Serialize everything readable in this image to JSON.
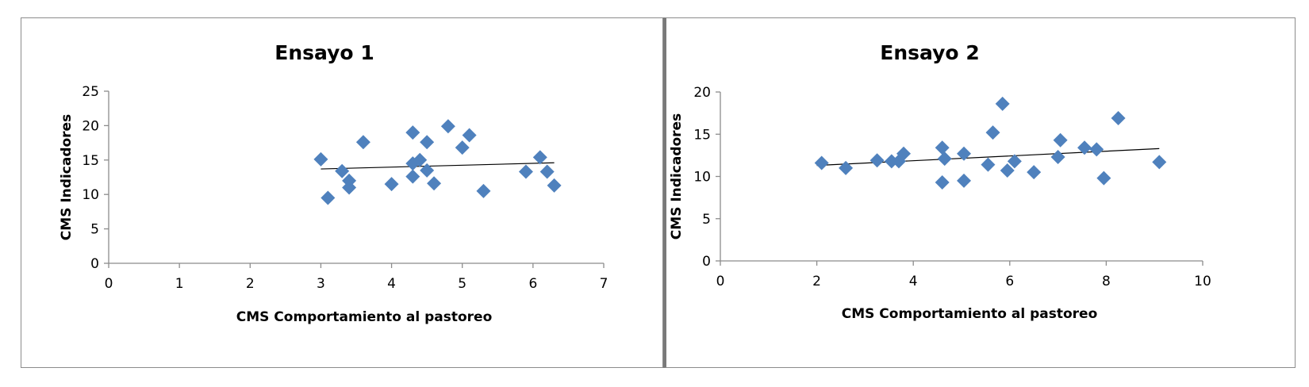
{
  "chart_data": [
    {
      "type": "scatter",
      "title": "Ensayo 1",
      "xlabel": "CMS Comportamiento al pastoreo",
      "ylabel": "CMS Indicadores",
      "xlim": [
        0,
        7
      ],
      "ylim": [
        0,
        25
      ],
      "xticks": [
        0,
        1,
        2,
        3,
        4,
        5,
        6,
        7
      ],
      "yticks": [
        0,
        5,
        10,
        15,
        20,
        25
      ],
      "grid": false,
      "marker": "diamond",
      "color": "#4f81bd",
      "points": [
        [
          3.0,
          15.1
        ],
        [
          3.1,
          9.5
        ],
        [
          3.3,
          13.4
        ],
        [
          3.4,
          12.0
        ],
        [
          3.4,
          11.0
        ],
        [
          3.6,
          17.6
        ],
        [
          4.0,
          11.5
        ],
        [
          4.3,
          19.0
        ],
        [
          4.3,
          14.5
        ],
        [
          4.3,
          12.6
        ],
        [
          4.4,
          15.0
        ],
        [
          4.5,
          17.6
        ],
        [
          4.5,
          13.5
        ],
        [
          4.6,
          11.6
        ],
        [
          4.8,
          19.9
        ],
        [
          5.0,
          16.8
        ],
        [
          5.1,
          18.6
        ],
        [
          5.3,
          10.5
        ],
        [
          5.9,
          13.3
        ],
        [
          6.1,
          15.4
        ],
        [
          6.2,
          13.3
        ],
        [
          6.3,
          11.3
        ]
      ],
      "trendline": [
        [
          3.0,
          13.7
        ],
        [
          6.3,
          14.6
        ]
      ]
    },
    {
      "type": "scatter",
      "title": "Ensayo 2",
      "xlabel": "CMS Comportamiento al pastoreo",
      "ylabel": "CMS Indicadores",
      "xlim": [
        0,
        10
      ],
      "ylim": [
        0,
        20
      ],
      "xticks": [
        0,
        2,
        4,
        6,
        8,
        10
      ],
      "yticks": [
        0,
        5,
        10,
        15,
        20
      ],
      "grid": false,
      "marker": "diamond",
      "color": "#4f81bd",
      "points": [
        [
          2.1,
          11.6
        ],
        [
          2.6,
          11.0
        ],
        [
          3.25,
          11.9
        ],
        [
          3.55,
          11.8
        ],
        [
          3.7,
          11.8
        ],
        [
          3.8,
          12.7
        ],
        [
          4.6,
          13.4
        ],
        [
          4.65,
          12.1
        ],
        [
          4.6,
          9.3
        ],
        [
          5.05,
          12.7
        ],
        [
          5.05,
          9.5
        ],
        [
          5.55,
          11.4
        ],
        [
          5.65,
          15.2
        ],
        [
          5.85,
          18.6
        ],
        [
          5.95,
          10.7
        ],
        [
          6.1,
          11.8
        ],
        [
          6.5,
          10.5
        ],
        [
          7.0,
          12.3
        ],
        [
          7.05,
          14.3
        ],
        [
          7.55,
          13.4
        ],
        [
          7.8,
          13.2
        ],
        [
          7.95,
          9.8
        ],
        [
          8.25,
          16.9
        ],
        [
          9.1,
          11.7
        ]
      ],
      "trendline": [
        [
          2.0,
          11.3
        ],
        [
          9.1,
          13.3
        ]
      ]
    }
  ]
}
